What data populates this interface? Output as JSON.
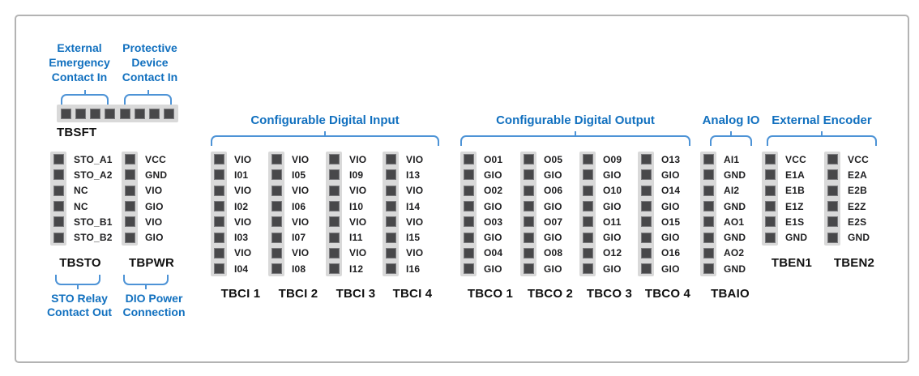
{
  "diagram": {
    "safety": {
      "block_name": "TBSFT",
      "pin_count": 8,
      "labels": [
        {
          "lines": [
            "External",
            "Emergency",
            "Contact In"
          ]
        },
        {
          "lines": [
            "Protective",
            "Device",
            "Contact In"
          ]
        }
      ]
    },
    "left_blocks": [
      {
        "name": "TBSTO",
        "pins": [
          "STO_A1",
          "STO_A2",
          "NC",
          "NC",
          "STO_B1",
          "STO_B2"
        ],
        "caption_lines": [
          "STO Relay",
          "Contact Out"
        ]
      },
      {
        "name": "TBPWR",
        "pins": [
          "VCC",
          "GND",
          "VIO",
          "GIO",
          "VIO",
          "GIO"
        ],
        "caption_lines": [
          "DIO Power",
          "Connection"
        ]
      }
    ],
    "groups": [
      {
        "title": "Configurable Digital Input",
        "columns": [
          {
            "name": "TBCI 1",
            "pins": [
              "VIO",
              "I01",
              "VIO",
              "I02",
              "VIO",
              "I03",
              "VIO",
              "I04"
            ]
          },
          {
            "name": "TBCI 2",
            "pins": [
              "VIO",
              "I05",
              "VIO",
              "I06",
              "VIO",
              "I07",
              "VIO",
              "I08"
            ]
          },
          {
            "name": "TBCI 3",
            "pins": [
              "VIO",
              "I09",
              "VIO",
              "I10",
              "VIO",
              "I11",
              "VIO",
              "I12"
            ]
          },
          {
            "name": "TBCI 4",
            "pins": [
              "VIO",
              "I13",
              "VIO",
              "I14",
              "VIO",
              "I15",
              "VIO",
              "I16"
            ]
          }
        ]
      },
      {
        "title": "Configurable Digital Output",
        "columns": [
          {
            "name": "TBCO 1",
            "pins": [
              "O01",
              "GIO",
              "O02",
              "GIO",
              "O03",
              "GIO",
              "O04",
              "GIO"
            ]
          },
          {
            "name": "TBCO 2",
            "pins": [
              "O05",
              "GIO",
              "O06",
              "GIO",
              "O07",
              "GIO",
              "O08",
              "GIO"
            ]
          },
          {
            "name": "TBCO 3",
            "pins": [
              "O09",
              "GIO",
              "O10",
              "GIO",
              "O11",
              "GIO",
              "O12",
              "GIO"
            ]
          },
          {
            "name": "TBCO 4",
            "pins": [
              "O13",
              "GIO",
              "O14",
              "GIO",
              "O15",
              "GIO",
              "O16",
              "GIO"
            ]
          }
        ]
      },
      {
        "title": "Analog IO",
        "columns": [
          {
            "name": "TBAIO",
            "pins": [
              "AI1",
              "GND",
              "AI2",
              "GND",
              "AO1",
              "GND",
              "AO2",
              "GND"
            ]
          }
        ]
      },
      {
        "title": "External Encoder",
        "columns": [
          {
            "name": "TBEN1",
            "pins": [
              "VCC",
              "E1A",
              "E1B",
              "E1Z",
              "E1S",
              "GND"
            ]
          },
          {
            "name": "TBEN2",
            "pins": [
              "VCC",
              "E2A",
              "E2B",
              "E2Z",
              "E2S",
              "GND"
            ]
          }
        ]
      }
    ],
    "colors": {
      "accent_blue": "#1170BF",
      "bracket_blue": "#4D93D6",
      "strip_gray": "#D9D9D9",
      "pin_dark": "#48484A",
      "frame_border_gray": "#B3B3B3"
    }
  }
}
